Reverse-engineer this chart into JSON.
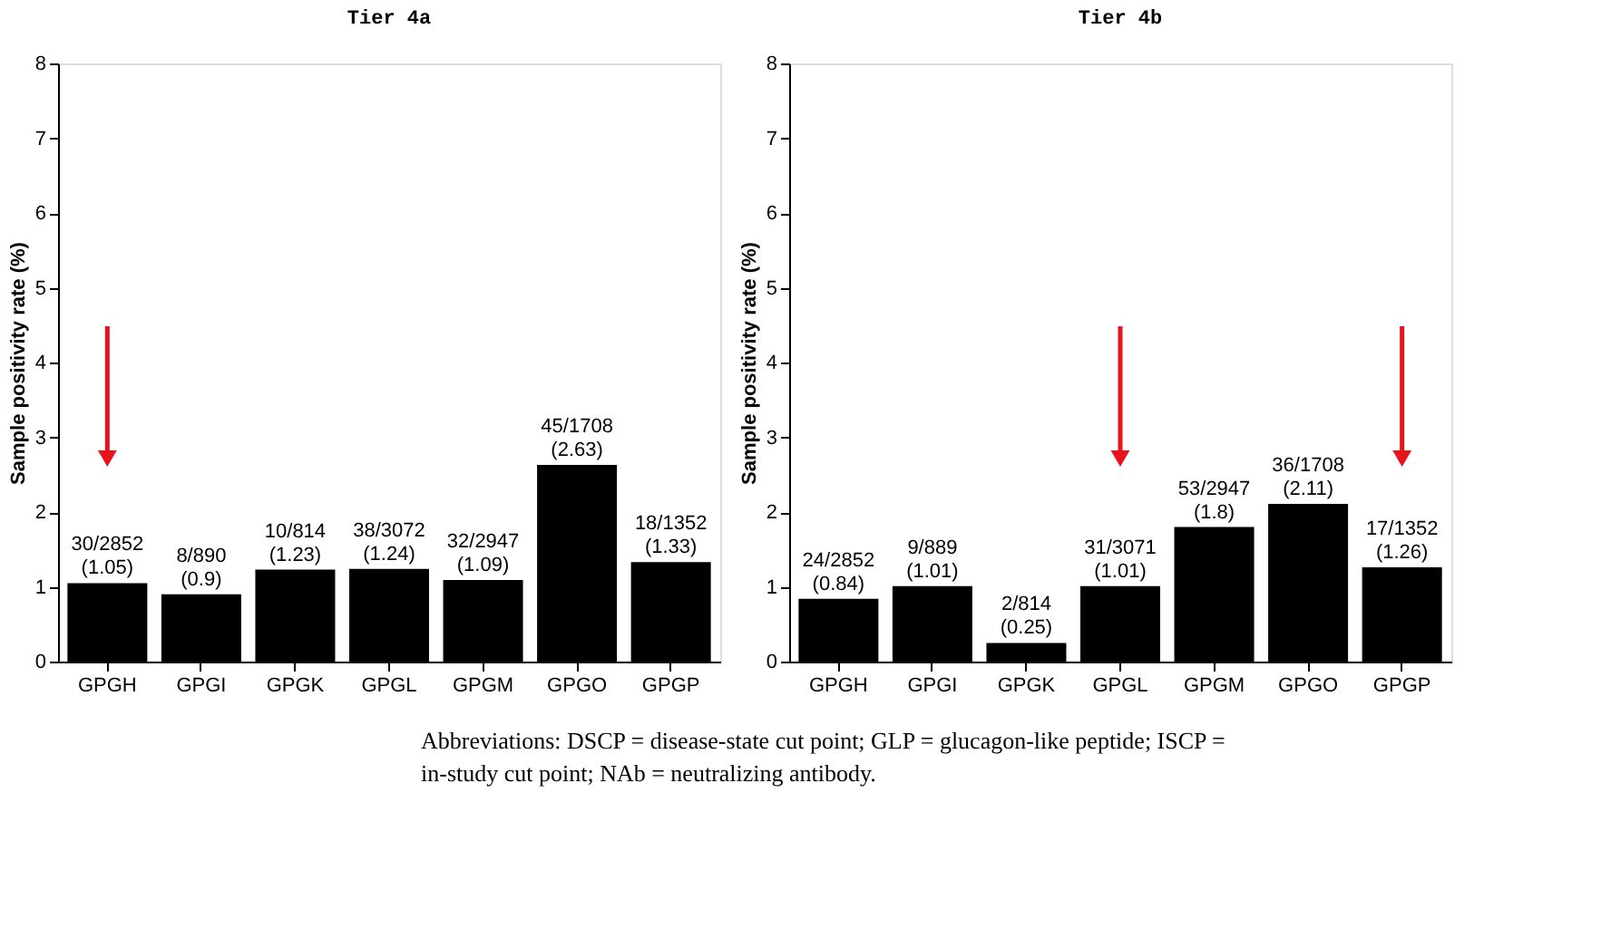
{
  "chart_data": [
    {
      "type": "bar",
      "title": "Tier 4a",
      "ylabel": "Sample positivity rate (%)",
      "categories": [
        "GPGH",
        "GPGI",
        "GPGK",
        "GPGL",
        "GPGM",
        "GPGO",
        "GPGP"
      ],
      "values": [
        1.05,
        0.9,
        1.23,
        1.24,
        1.09,
        2.63,
        1.33
      ],
      "color": "#000000",
      "value_labels": [
        "30/2852\n(1.05)",
        "8/890\n(0.9)",
        "10/814\n(1.23)",
        "38/3072\n(1.24)",
        "32/2947\n(1.09)",
        "45/1708\n(2.63)",
        "18/1352\n(1.33)"
      ],
      "ylim": [
        0,
        8
      ],
      "yticks": [
        0,
        1,
        2,
        3,
        4,
        5,
        6,
        7,
        8
      ],
      "grid": false
    },
    {
      "type": "bar",
      "title": "Tier 4b",
      "ylabel": "Sample positivity rate (%)",
      "categories": [
        "GPGH",
        "GPGI",
        "GPGK",
        "GPGL",
        "GPGM",
        "GPGO",
        "GPGP"
      ],
      "values": [
        0.84,
        1.01,
        0.25,
        1.01,
        1.8,
        2.11,
        1.26
      ],
      "color": "#000000",
      "value_labels": [
        "24/2852\n(0.84)",
        "9/889\n(1.01)",
        "2/814\n(0.25)",
        "31/3071\n(1.01)",
        "53/2947\n(1.8)",
        "36/1708\n(2.11)",
        "17/1352\n(1.26)"
      ],
      "ylim": [
        0,
        8
      ],
      "yticks": [
        0,
        1,
        2,
        3,
        4,
        5,
        6,
        7,
        8
      ],
      "grid": false,
      "annotations": [
        "Abbreviations: DSCP = disease-state cut point; GLP = glucagon-like peptide; ISCP = in-study cut point; NAb = neutralizing antibody."
      ]
    }
  ]
}
